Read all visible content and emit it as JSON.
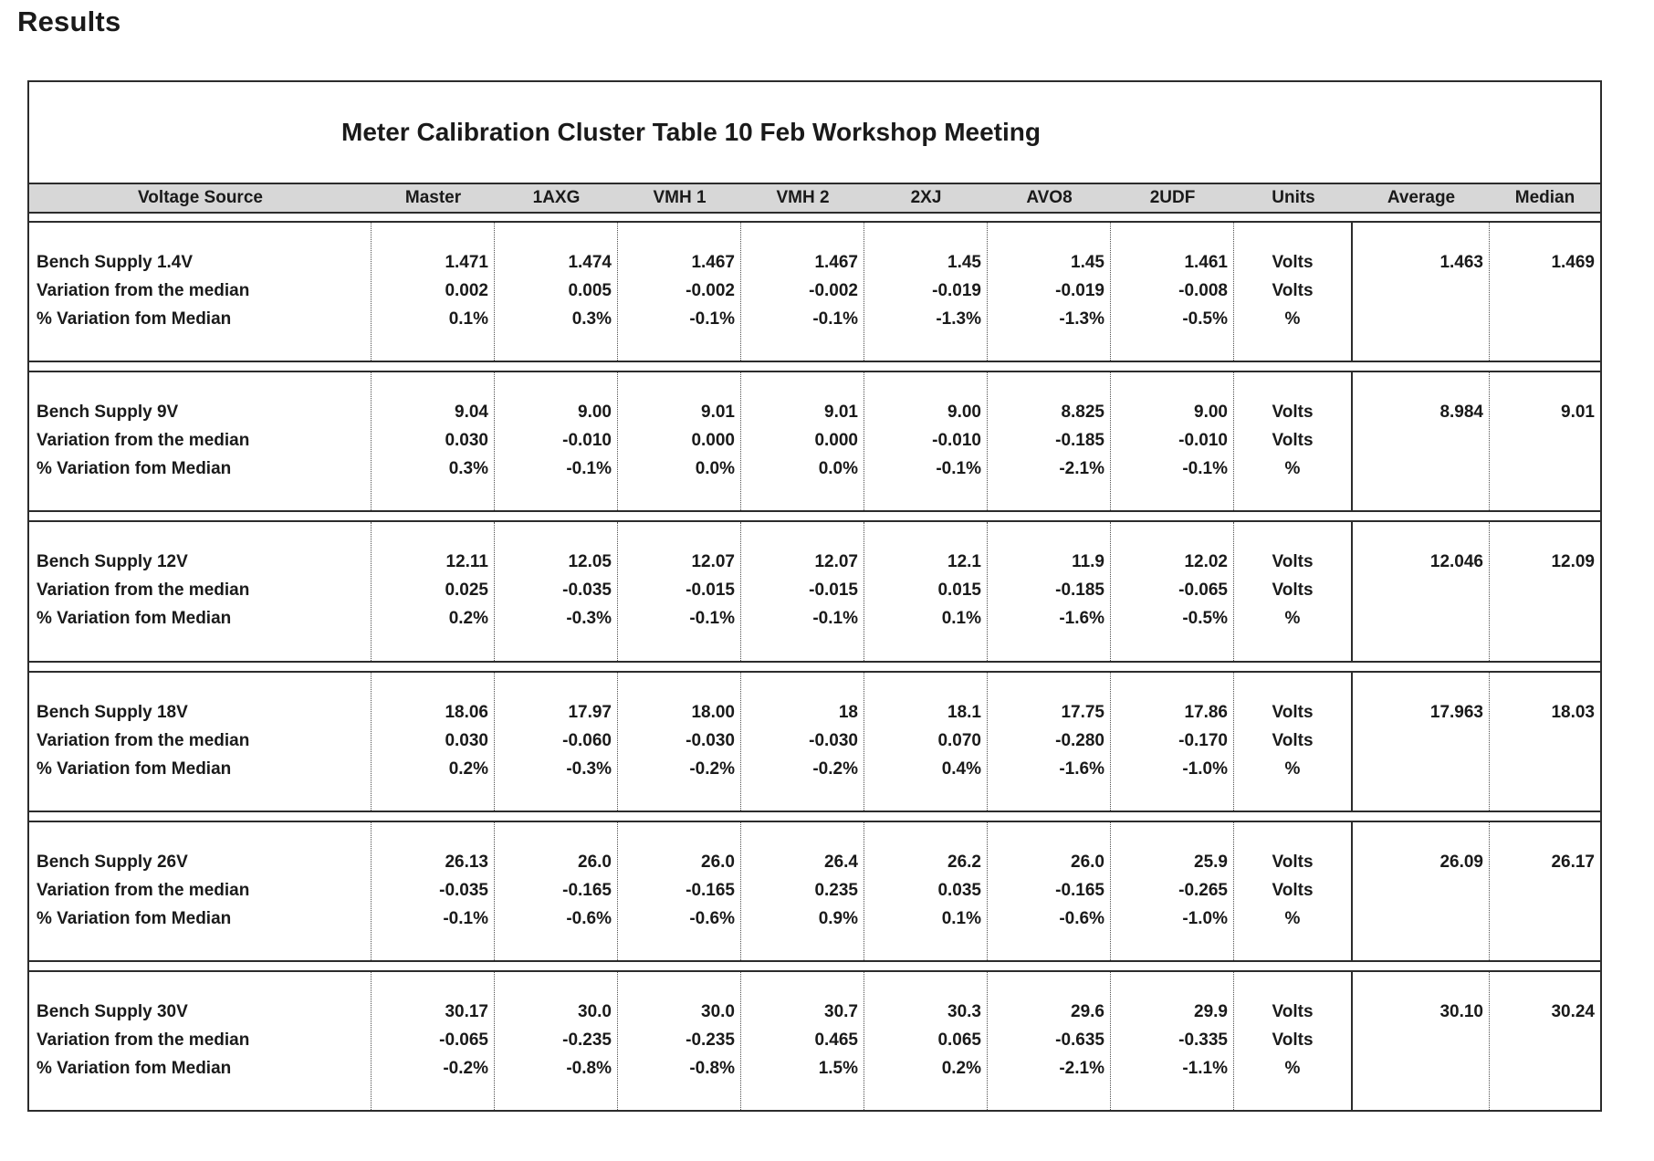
{
  "page": {
    "heading": "Results"
  },
  "table": {
    "title": "Meter Calibration Cluster Table 10 Feb Workshop Meeting",
    "columns": [
      "Voltage Source",
      "Master",
      "1AXG",
      "VMH 1",
      "VMH 2",
      "2XJ",
      "AVO8",
      "2UDF",
      "Units",
      "Average",
      "Median"
    ],
    "blocks": [
      {
        "rows": [
          {
            "label": "Bench Supply 1.4V",
            "values": [
              "1.471",
              "1.474",
              "1.467",
              "1.467",
              "1.45",
              "1.45",
              "1.461"
            ],
            "unit": "Volts",
            "average": "1.463",
            "median": "1.469"
          },
          {
            "label": "Variation from the median",
            "values": [
              "0.002",
              "0.005",
              "-0.002",
              "-0.002",
              "-0.019",
              "-0.019",
              "-0.008"
            ],
            "unit": "Volts",
            "average": "",
            "median": ""
          },
          {
            "label": "% Variation fom Median",
            "values": [
              "0.1%",
              "0.3%",
              "-0.1%",
              "-0.1%",
              "-1.3%",
              "-1.3%",
              "-0.5%"
            ],
            "unit": "%",
            "average": "",
            "median": ""
          }
        ]
      },
      {
        "rows": [
          {
            "label": "Bench Supply 9V",
            "values": [
              "9.04",
              "9.00",
              "9.01",
              "9.01",
              "9.00",
              "8.825",
              "9.00"
            ],
            "unit": "Volts",
            "average": "8.984",
            "median": "9.01"
          },
          {
            "label": "Variation from the median",
            "values": [
              "0.030",
              "-0.010",
              "0.000",
              "0.000",
              "-0.010",
              "-0.185",
              "-0.010"
            ],
            "unit": "Volts",
            "average": "",
            "median": ""
          },
          {
            "label": "% Variation fom Median",
            "values": [
              "0.3%",
              "-0.1%",
              "0.0%",
              "0.0%",
              "-0.1%",
              "-2.1%",
              "-0.1%"
            ],
            "unit": "%",
            "average": "",
            "median": ""
          }
        ]
      },
      {
        "rows": [
          {
            "label": "Bench Supply 12V",
            "values": [
              "12.11",
              "12.05",
              "12.07",
              "12.07",
              "12.1",
              "11.9",
              "12.02"
            ],
            "unit": "Volts",
            "average": "12.046",
            "median": "12.09"
          },
          {
            "label": "Variation from the median",
            "values": [
              "0.025",
              "-0.035",
              "-0.015",
              "-0.015",
              "0.015",
              "-0.185",
              "-0.065"
            ],
            "unit": "Volts",
            "average": "",
            "median": ""
          },
          {
            "label": "% Variation fom Median",
            "values": [
              "0.2%",
              "-0.3%",
              "-0.1%",
              "-0.1%",
              "0.1%",
              "-1.6%",
              "-0.5%"
            ],
            "unit": "%",
            "average": "",
            "median": ""
          }
        ]
      },
      {
        "rows": [
          {
            "label": "Bench Supply 18V",
            "values": [
              "18.06",
              "17.97",
              "18.00",
              "18",
              "18.1",
              "17.75",
              "17.86"
            ],
            "unit": "Volts",
            "average": "17.963",
            "median": "18.03"
          },
          {
            "label": "Variation from the median",
            "values": [
              "0.030",
              "-0.060",
              "-0.030",
              "-0.030",
              "0.070",
              "-0.280",
              "-0.170"
            ],
            "unit": "Volts",
            "average": "",
            "median": ""
          },
          {
            "label": "% Variation fom Median",
            "values": [
              "0.2%",
              "-0.3%",
              "-0.2%",
              "-0.2%",
              "0.4%",
              "-1.6%",
              "-1.0%"
            ],
            "unit": "%",
            "average": "",
            "median": ""
          }
        ]
      },
      {
        "rows": [
          {
            "label": "Bench Supply 26V",
            "values": [
              "26.13",
              "26.0",
              "26.0",
              "26.4",
              "26.2",
              "26.0",
              "25.9"
            ],
            "unit": "Volts",
            "average": "26.09",
            "median": "26.17"
          },
          {
            "label": "Variation from the median",
            "values": [
              "-0.035",
              "-0.165",
              "-0.165",
              "0.235",
              "0.035",
              "-0.165",
              "-0.265"
            ],
            "unit": "Volts",
            "average": "",
            "median": ""
          },
          {
            "label": "% Variation fom Median",
            "values": [
              "-0.1%",
              "-0.6%",
              "-0.6%",
              "0.9%",
              "0.1%",
              "-0.6%",
              "-1.0%"
            ],
            "unit": "%",
            "average": "",
            "median": ""
          }
        ]
      },
      {
        "rows": [
          {
            "label": "Bench Supply 30V",
            "values": [
              "30.17",
              "30.0",
              "30.0",
              "30.7",
              "30.3",
              "29.6",
              "29.9"
            ],
            "unit": "Volts",
            "average": "30.10",
            "median": "30.24"
          },
          {
            "label": "Variation from the median",
            "values": [
              "-0.065",
              "-0.235",
              "-0.235",
              "0.465",
              "0.065",
              "-0.635",
              "-0.335"
            ],
            "unit": "Volts",
            "average": "",
            "median": ""
          },
          {
            "label": "% Variation fom Median",
            "values": [
              "-0.2%",
              "-0.8%",
              "-0.8%",
              "1.5%",
              "0.2%",
              "-2.1%",
              "-1.1%"
            ],
            "unit": "%",
            "average": "",
            "median": ""
          }
        ]
      }
    ]
  }
}
